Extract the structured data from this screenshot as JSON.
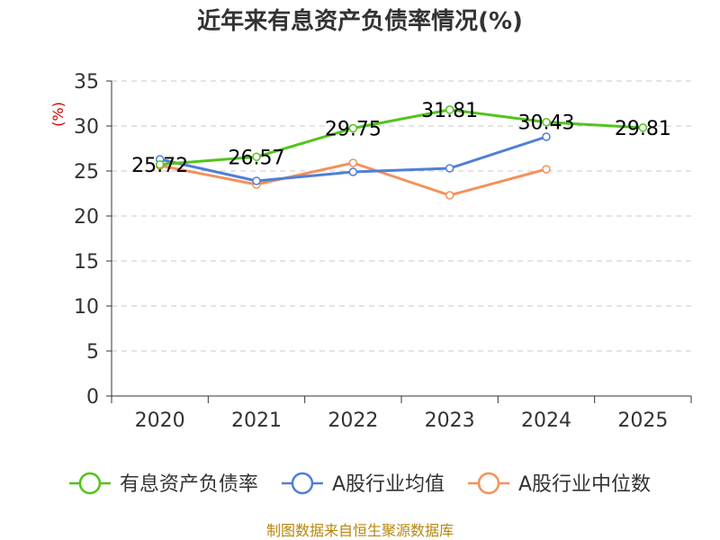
{
  "chart_data": {
    "type": "line",
    "title": "近年来有息资产负债率情况(%)",
    "ylabel": "(%)",
    "xlabel": "",
    "categories": [
      "2020",
      "2021",
      "2022",
      "2023",
      "2024",
      "2025"
    ],
    "ylim": [
      0,
      35
    ],
    "yticks": [
      "0",
      "5",
      "10",
      "15",
      "20",
      "25",
      "30",
      "35"
    ],
    "grid": "horizontal dashed",
    "legend_position": "bottom",
    "series": [
      {
        "name": "有息资产负债率",
        "color": "#52c41a",
        "values": [
          25.72,
          26.57,
          29.75,
          31.81,
          30.43,
          29.81
        ],
        "labels": [
          "25.72",
          "26.57",
          "29.75",
          "31.81",
          "30.43",
          "29.81"
        ]
      },
      {
        "name": "A股行业均值",
        "color": "#4f7fd8",
        "values": [
          26.3,
          23.9,
          24.9,
          25.3,
          28.8,
          null
        ]
      },
      {
        "name": "A股行业中位数",
        "color": "#f4915a",
        "values": [
          25.6,
          23.5,
          25.9,
          22.3,
          25.2,
          null
        ]
      }
    ],
    "source": "制图数据来自恒生聚源数据库"
  }
}
